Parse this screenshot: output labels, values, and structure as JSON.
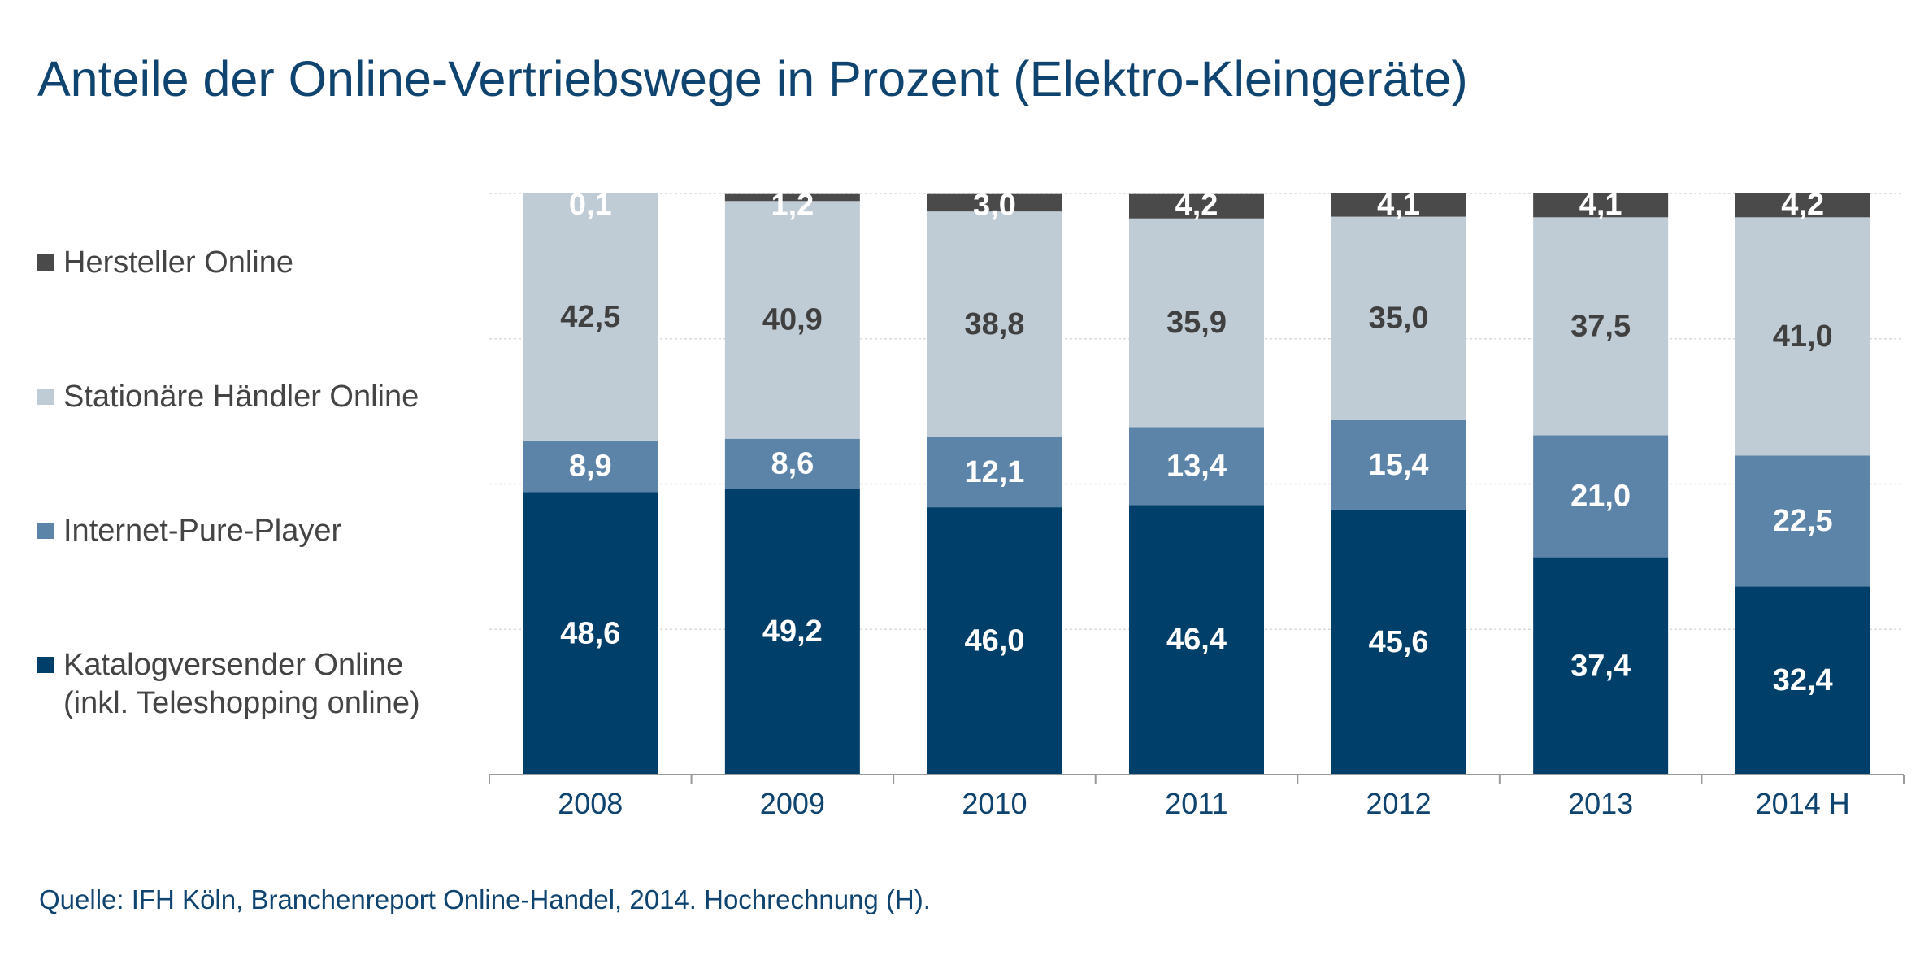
{
  "chart_data": {
    "type": "bar",
    "stacked": true,
    "title": "Anteile der Online-Vertriebswege in Prozent (Elektro-Kleingeräte)",
    "categories": [
      "2008",
      "2009",
      "2010",
      "2011",
      "2012",
      "2013",
      "2014 H"
    ],
    "series": [
      {
        "name": "Katalogversender Online\n(inkl. Teleshopping online)",
        "color": "#003f6a",
        "label_color": "#ffffff",
        "values": [
          48.6,
          49.2,
          46.0,
          46.4,
          45.6,
          37.4,
          32.4
        ],
        "labels": [
          "48,6",
          "49,2",
          "46,0",
          "46,4",
          "45,6",
          "37,4",
          "32,4"
        ]
      },
      {
        "name": "Internet-Pure-Player",
        "color": "#5b84a8",
        "label_color": "#ffffff",
        "values": [
          8.9,
          8.6,
          12.1,
          13.4,
          15.4,
          21.0,
          22.5
        ],
        "labels": [
          "8,9",
          "8,6",
          "12,1",
          "13,4",
          "15,4",
          "21,0",
          "22,5"
        ]
      },
      {
        "name": "Stationäre Händler Online",
        "color": "#bfcbd5",
        "label_color": "#404040",
        "values": [
          42.5,
          40.9,
          38.8,
          35.9,
          35.0,
          37.5,
          41.0
        ],
        "labels": [
          "42,5",
          "40,9",
          "38,8",
          "35,9",
          "35,0",
          "37,5",
          "41,0"
        ]
      },
      {
        "name": "Hersteller Online",
        "color": "#4a4a4a",
        "label_color": "#ffffff",
        "values": [
          0.1,
          1.2,
          3.0,
          4.2,
          4.1,
          4.1,
          4.2
        ],
        "labels": [
          "0,1",
          "1,2",
          "3,0",
          "4,2",
          "4,1",
          "4,1",
          "4,2"
        ]
      }
    ],
    "ylim": [
      0,
      100
    ],
    "grid": true,
    "legend_position": "left",
    "xlabel": "",
    "ylabel": ""
  },
  "source": "Quelle: IFH Köln, Branchenreport Online-Handel, 2014. Hochrechnung (H)."
}
